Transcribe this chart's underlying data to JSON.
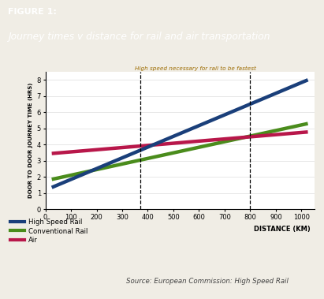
{
  "title_line1": "FIGURE 1:",
  "title_line2": "Journey times v distance for rail and air transportation",
  "header_bg_color": "#b0a58e",
  "xlabel": "DISTANCE (KM)",
  "ylabel": "DOOR TO DOOR JOURNEY TIME (HRS)",
  "xlim": [
    0,
    1050
  ],
  "ylim": [
    0,
    8.5
  ],
  "xticks": [
    0,
    100,
    200,
    300,
    400,
    500,
    600,
    700,
    800,
    900,
    1000
  ],
  "yticks": [
    0,
    1,
    2,
    3,
    4,
    5,
    6,
    7,
    8
  ],
  "high_speed_rail": {
    "x": [
      25,
      1025
    ],
    "y": [
      1.35,
      8.0
    ],
    "color": "#1a3f7a",
    "label": "High Speed Rail",
    "linewidth": 3.2
  },
  "conventional_rail": {
    "x": [
      25,
      1025
    ],
    "y": [
      1.85,
      5.3
    ],
    "color": "#4a8c1c",
    "label": "Conventional Rail",
    "linewidth": 3.2
  },
  "air": {
    "x": [
      25,
      1025
    ],
    "y": [
      3.45,
      4.78
    ],
    "color": "#b8174a",
    "label": "Air",
    "linewidth": 3.2
  },
  "vline1_x": 370,
  "vline2_x": 800,
  "annotation_text": "High speed necessary for rail to be fastest",
  "annotation_color": "#9c6b00",
  "source_text": "Source: European Commission: High Speed Rail",
  "bg_color": "#f0ede5",
  "plot_bg_color": "#ffffff",
  "grid_color": "#dddddd",
  "title1_color": "#ffffff",
  "title2_color": "#ffffff"
}
